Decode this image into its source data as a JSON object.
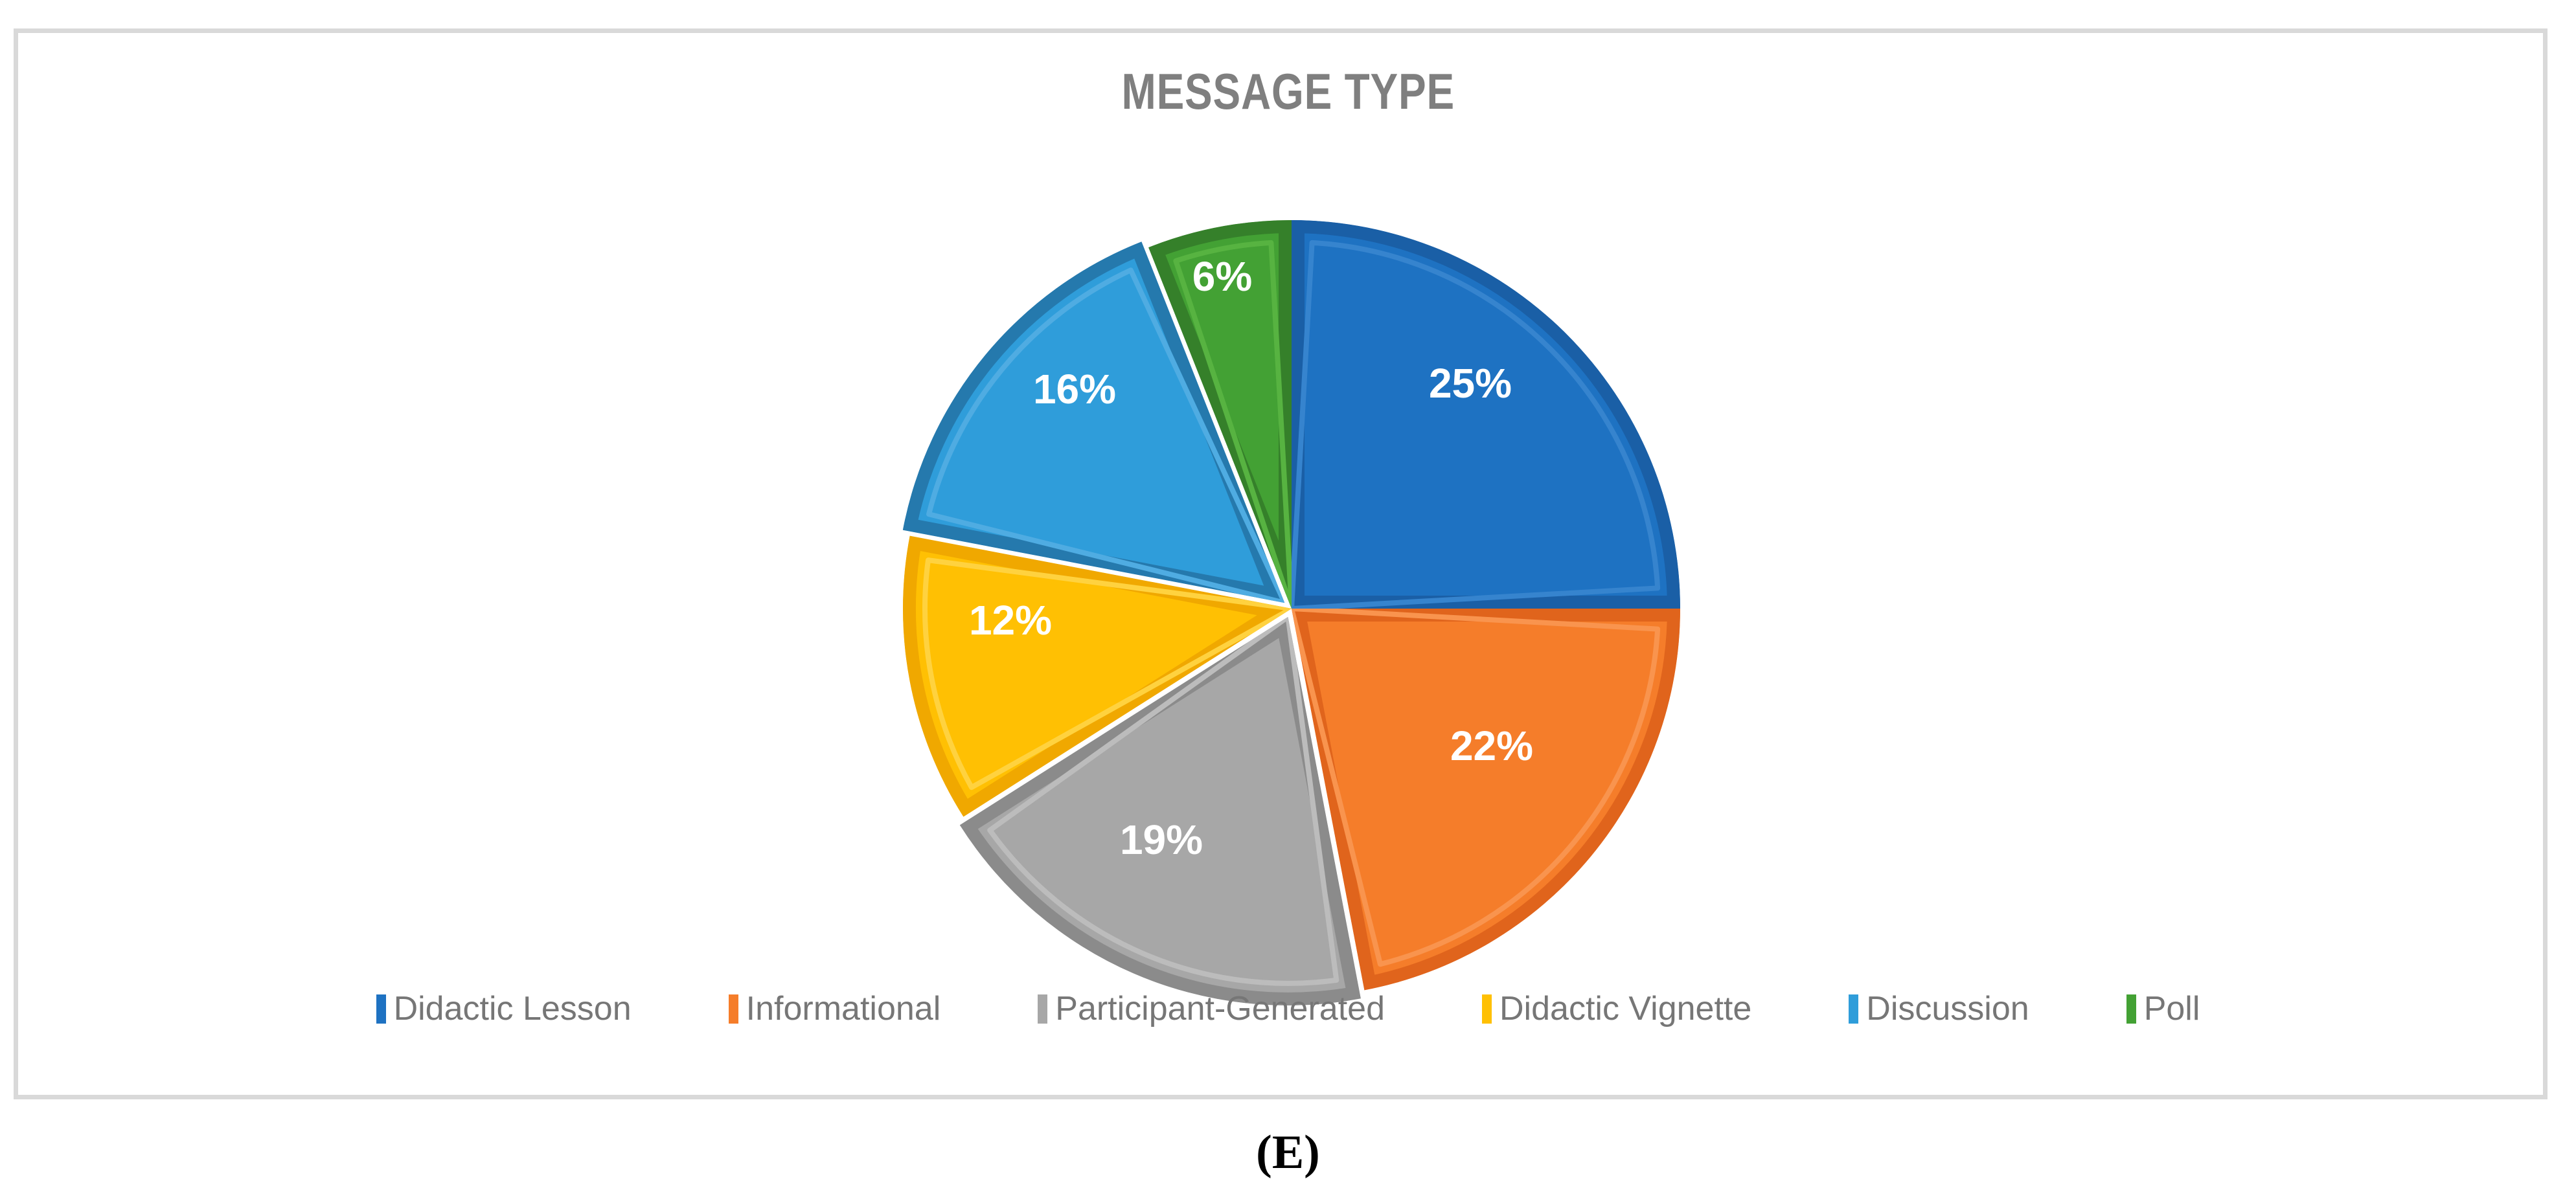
{
  "figure": {
    "panel_label": "(E)"
  },
  "chart_data": {
    "type": "pie",
    "title": "MESSAGE TYPE",
    "categories": [
      "Didactic Lesson",
      "Informational",
      "Participant-Generated",
      "Didactic Vignette",
      "Discussion",
      "Poll"
    ],
    "values": [
      25,
      22,
      19,
      12,
      16,
      6
    ],
    "unit": "%",
    "slice_labels": [
      "25%",
      "22%",
      "19%",
      "12%",
      "16%",
      "6%"
    ],
    "start_angle_deg": 0,
    "direction": "clockwise",
    "legend_position": "bottom",
    "grid": "off",
    "exploded_categories": [
      "Participant-Generated",
      "Discussion"
    ],
    "slice_styles": [
      {
        "fill": "#1E72C2",
        "rim": "#1A5FA6",
        "highlight": "#3684CE"
      },
      {
        "fill": "#F57D2A",
        "rim": "#E0641C",
        "highlight": "#F9944E"
      },
      {
        "fill": "#A7A7A7",
        "rim": "#8B8B8B",
        "highlight": "#BCBCBC"
      },
      {
        "fill": "#FFC003",
        "rim": "#F0A800",
        "highlight": "#FFD23F"
      },
      {
        "fill": "#2F9DDA",
        "rim": "#2579AD",
        "highlight": "#4FACE2"
      },
      {
        "fill": "#43A134",
        "rim": "#35802A",
        "highlight": "#57B341"
      }
    ],
    "colors": {
      "title_text": "#7F7F7F",
      "legend_text": "#767676",
      "slice_label_text": "#FFFFFF",
      "frame_border": "#D9D9D9",
      "background": "#FFFFFF"
    }
  }
}
